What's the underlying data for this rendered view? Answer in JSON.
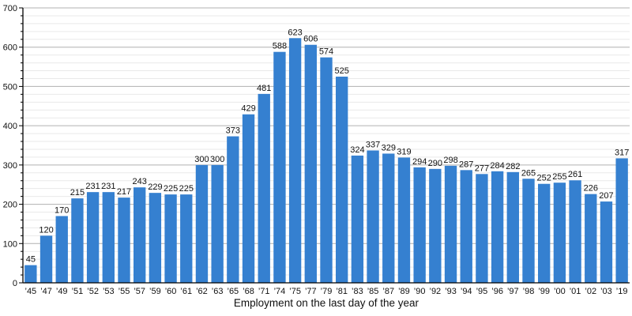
{
  "chart_data": {
    "type": "bar",
    "title": "",
    "xlabel": "Employment on the last day of the year",
    "ylabel": "",
    "categories": [
      "’45",
      "’47",
      "’49",
      "’51",
      "’52",
      "’53",
      "’55",
      "’57",
      "’59",
      "’60",
      "’61",
      "’62",
      "’63",
      "’65",
      "’68",
      "’71",
      "’74",
      "’75",
      "’77",
      "’79",
      "’81",
      "’83",
      "’85",
      "’87",
      "’89",
      "’90",
      "’92",
      "’93",
      "’94",
      "’95",
      "’96",
      "’97",
      "’98",
      "’99",
      "’00",
      "’01",
      "’02",
      "’03",
      "’19"
    ],
    "values": [
      45,
      120,
      170,
      215,
      231,
      231,
      217,
      243,
      229,
      225,
      225,
      300,
      300,
      373,
      429,
      481,
      588,
      623,
      606,
      574,
      525,
      324,
      337,
      329,
      319,
      294,
      290,
      298,
      287,
      277,
      284,
      282,
      265,
      252,
      255,
      261,
      226,
      207,
      317
    ],
    "ylim": [
      0,
      700
    ],
    "y_major_step": 100,
    "y_minor_step": 20,
    "y_tick_labels": [
      "0",
      "100",
      "200",
      "300",
      "400",
      "500",
      "600",
      "700"
    ],
    "grid": true,
    "legend": "none",
    "colors": {
      "bar": "#3580d0",
      "grid_major": "#b0b0b0",
      "grid_minor": "#e9e9e9",
      "axis": "#000000",
      "text": "#111111"
    }
  }
}
